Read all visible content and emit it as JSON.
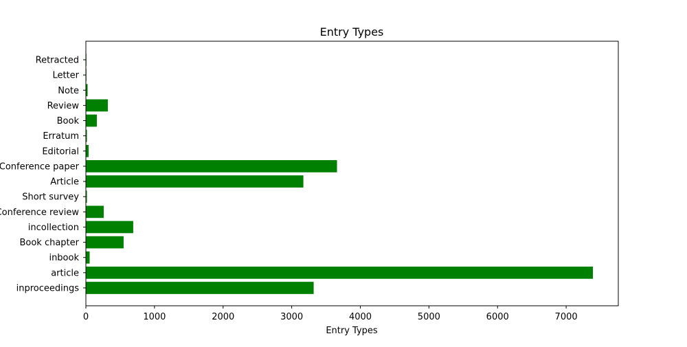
{
  "chart_data": {
    "type": "bar",
    "orientation": "horizontal",
    "title": "Entry Types",
    "xlabel": "Entry Types",
    "ylabel": "",
    "categories": [
      "inproceedings",
      "article",
      "inbook",
      "Book chapter",
      "incollection",
      "Conference review",
      "Short survey",
      "Article",
      "Conference paper",
      "Editorial",
      "Erratum",
      "Book",
      "Review",
      "Note",
      "Letter",
      "Retracted"
    ],
    "values": [
      3320,
      7390,
      55,
      550,
      690,
      260,
      15,
      3170,
      3660,
      40,
      15,
      160,
      320,
      25,
      5,
      3
    ],
    "xlim": [
      0,
      7760
    ],
    "xticks": [
      0,
      1000,
      2000,
      3000,
      4000,
      5000,
      6000,
      7000
    ],
    "bar_color": "#008000",
    "grid": false,
    "legend": "none"
  }
}
